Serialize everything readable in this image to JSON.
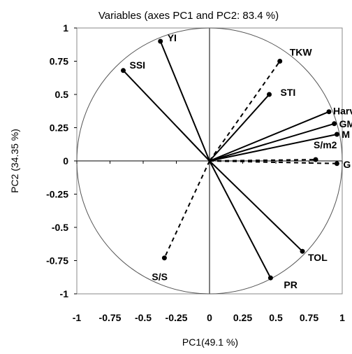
{
  "chart_data": {
    "type": "scatter",
    "title": "Variables (axes PC1 and PC2: 83.4 %)",
    "xlabel": "PC1(49.1 %)",
    "ylabel": "PC2 (34.35 %)",
    "xlim": [
      -1,
      1
    ],
    "ylim": [
      -1,
      1
    ],
    "x_ticks": [
      "-1",
      "-0.75",
      "-0.5",
      "-0.25",
      "0",
      "0.25",
      "0.5",
      "0.75",
      "1"
    ],
    "y_ticks": [
      "1",
      "0.75",
      "0.5",
      "0.25",
      "0",
      "-0.25",
      "-0.5",
      "-0.75",
      "-1"
    ],
    "unit_circle": true,
    "grid": false,
    "points": [
      {
        "label": "YI",
        "x": -0.37,
        "y": 0.9,
        "line": "solid"
      },
      {
        "label": "SSI",
        "x": -0.65,
        "y": 0.68,
        "line": "solid"
      },
      {
        "label": "TKW",
        "x": 0.53,
        "y": 0.75,
        "line": "dashed"
      },
      {
        "label": "STI",
        "x": 0.45,
        "y": 0.5,
        "line": "solid"
      },
      {
        "label": "Harv",
        "x": 0.9,
        "y": 0.37,
        "line": "solid"
      },
      {
        "label": "GM",
        "x": 0.94,
        "y": 0.28,
        "line": "solid"
      },
      {
        "label": "M",
        "x": 0.96,
        "y": 0.2,
        "line": "solid"
      },
      {
        "label": "S/m2",
        "x": 0.8,
        "y": 0.01,
        "line": "dashed"
      },
      {
        "label": "G",
        "x": 0.96,
        "y": -0.02,
        "line": "dashed"
      },
      {
        "label": "TOL",
        "x": 0.7,
        "y": -0.68,
        "line": "solid"
      },
      {
        "label": "PR",
        "x": 0.46,
        "y": -0.88,
        "line": "solid"
      },
      {
        "label": "S/S",
        "x": -0.34,
        "y": -0.73,
        "line": "dashed"
      }
    ]
  }
}
